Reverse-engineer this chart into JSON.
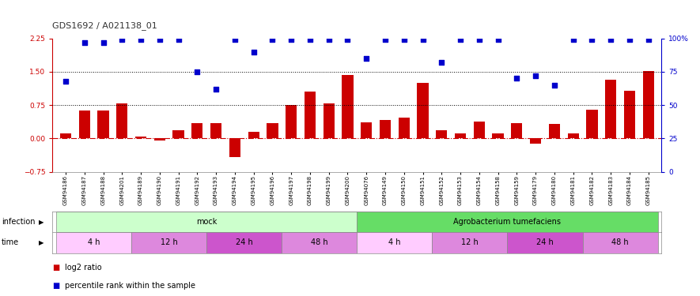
{
  "title": "GDS1692 / A021138_01",
  "samples": [
    "GSM94186",
    "GSM94187",
    "GSM94188",
    "GSM94201",
    "GSM94189",
    "GSM94190",
    "GSM94191",
    "GSM94192",
    "GSM94193",
    "GSM94194",
    "GSM94195",
    "GSM94196",
    "GSM94197",
    "GSM94198",
    "GSM94199",
    "GSM94200",
    "GSM94076",
    "GSM94149",
    "GSM94150",
    "GSM94151",
    "GSM94152",
    "GSM94153",
    "GSM94154",
    "GSM94158",
    "GSM94159",
    "GSM94179",
    "GSM94180",
    "GSM94181",
    "GSM94182",
    "GSM94183",
    "GSM94184",
    "GSM94185"
  ],
  "log2_ratio": [
    0.12,
    0.62,
    0.62,
    0.78,
    0.05,
    -0.05,
    0.18,
    0.35,
    0.35,
    -0.42,
    0.15,
    0.35,
    0.75,
    1.05,
    0.78,
    1.42,
    0.37,
    0.42,
    0.47,
    1.25,
    0.18,
    0.12,
    0.38,
    0.12,
    0.35,
    -0.12,
    0.32,
    0.12,
    0.65,
    1.32,
    1.08,
    1.52
  ],
  "percentile_rank": [
    68,
    97,
    97,
    99,
    99,
    99,
    99,
    75,
    62,
    99,
    90,
    99,
    99,
    99,
    99,
    99,
    85,
    99,
    99,
    99,
    82,
    99,
    99,
    99,
    70,
    72,
    65,
    99,
    99,
    99,
    99,
    99
  ],
  "bar_color": "#cc0000",
  "dot_color": "#0000cc",
  "ylim_left": [
    -0.75,
    2.25
  ],
  "yticks_left": [
    -0.75,
    0.0,
    0.75,
    1.5,
    2.25
  ],
  "ylim_right": [
    0,
    100
  ],
  "yticks_right": [
    0,
    25,
    50,
    75,
    100
  ],
  "hlines": [
    0.75,
    1.5
  ],
  "zero_line_color": "#cc0000",
  "hline_color": "#000000",
  "infection_groups": [
    {
      "label": "mock",
      "start": 0,
      "end": 15,
      "color": "#ccffcc"
    },
    {
      "label": "Agrobacterium tumefaciens",
      "start": 16,
      "end": 31,
      "color": "#66dd66"
    }
  ],
  "time_groups": [
    {
      "label": "4 h",
      "start": 0,
      "end": 3,
      "color": "#ffccff"
    },
    {
      "label": "12 h",
      "start": 4,
      "end": 7,
      "color": "#dd88dd"
    },
    {
      "label": "24 h",
      "start": 8,
      "end": 11,
      "color": "#cc55cc"
    },
    {
      "label": "48 h",
      "start": 12,
      "end": 15,
      "color": "#dd88dd"
    },
    {
      "label": "4 h",
      "start": 16,
      "end": 19,
      "color": "#ffccff"
    },
    {
      "label": "12 h",
      "start": 20,
      "end": 23,
      "color": "#dd88dd"
    },
    {
      "label": "24 h",
      "start": 24,
      "end": 27,
      "color": "#cc55cc"
    },
    {
      "label": "48 h",
      "start": 28,
      "end": 31,
      "color": "#dd88dd"
    }
  ],
  "legend_bar_label": "log2 ratio",
  "legend_dot_label": "percentile rank within the sample",
  "infection_label": "infection",
  "time_label": "time",
  "bg_color": "#ffffff"
}
